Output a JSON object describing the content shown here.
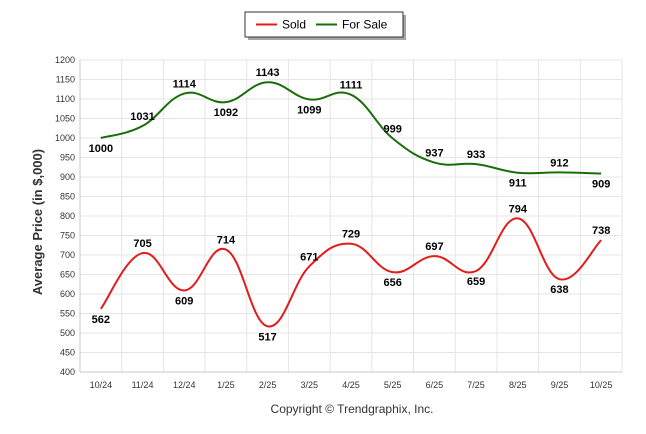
{
  "chart_data": {
    "type": "line",
    "title": "",
    "xlabel": "",
    "ylabel": "Average Price (in $,000)",
    "ylim": [
      400,
      1200
    ],
    "ytick_step": 50,
    "categories": [
      "10/24",
      "11/24",
      "12/24",
      "1/25",
      "2/25",
      "3/25",
      "4/25",
      "5/25",
      "6/25",
      "7/25",
      "8/25",
      "9/25",
      "10/25"
    ],
    "series": [
      {
        "name": "Sold",
        "color": "#e31b1b",
        "values": [
          562,
          705,
          609,
          714,
          517,
          671,
          729,
          656,
          697,
          659,
          794,
          638,
          738
        ]
      },
      {
        "name": "For Sale",
        "color": "#1a6e0a",
        "values": [
          1000,
          1031,
          1114,
          1092,
          1143,
          1099,
          1111,
          999,
          937,
          933,
          911,
          912,
          909
        ]
      }
    ],
    "legend_position": "top-center",
    "grid": true,
    "footer": "Copyright © Trendgraphix, Inc."
  }
}
